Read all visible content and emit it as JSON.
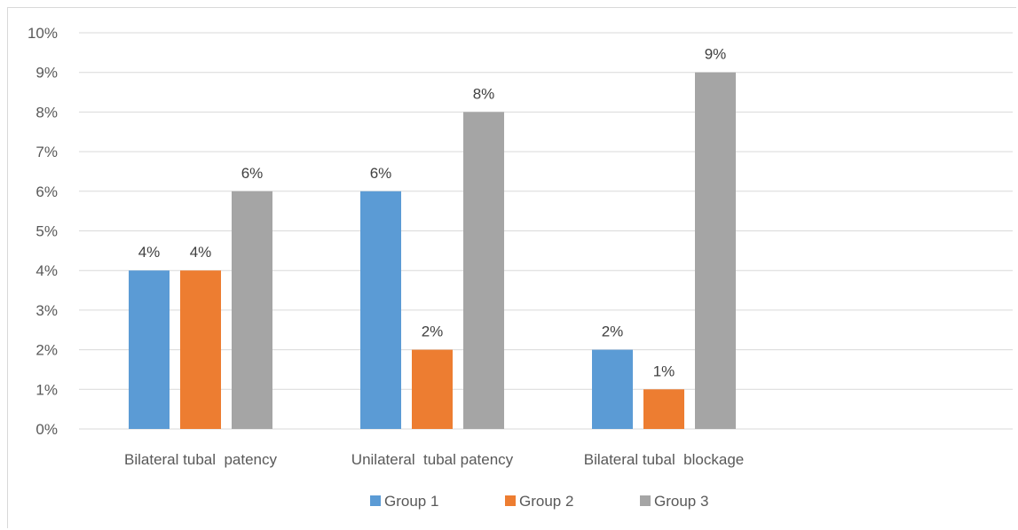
{
  "chart_data": {
    "type": "bar",
    "title": "",
    "xlabel": "",
    "ylabel": "",
    "categories": [
      "Bilateral tubal  patency",
      "Unilateral  tubal patency",
      "Bilateral tubal  blockage"
    ],
    "series": [
      {
        "name": "Group 1",
        "color": "#5b9bd5",
        "values": [
          4,
          6,
          2
        ]
      },
      {
        "name": "Group 2",
        "color": "#ed7d31",
        "values": [
          4,
          2,
          1
        ]
      },
      {
        "name": "Group 3",
        "color": "#a5a5a5",
        "values": [
          6,
          8,
          9
        ]
      }
    ],
    "data_labels": [
      [
        "4%",
        "6%",
        "2%"
      ],
      [
        "4%",
        "2%",
        "1%"
      ],
      [
        "6%",
        "8%",
        "9%"
      ]
    ],
    "ylim": [
      0,
      10
    ],
    "yticks": [
      "0%",
      "1%",
      "2%",
      "3%",
      "4%",
      "5%",
      "6%",
      "7%",
      "8%",
      "9%",
      "10%"
    ],
    "grid": true,
    "legend_position": "bottom",
    "gridline_color": "#d9d9d9"
  }
}
